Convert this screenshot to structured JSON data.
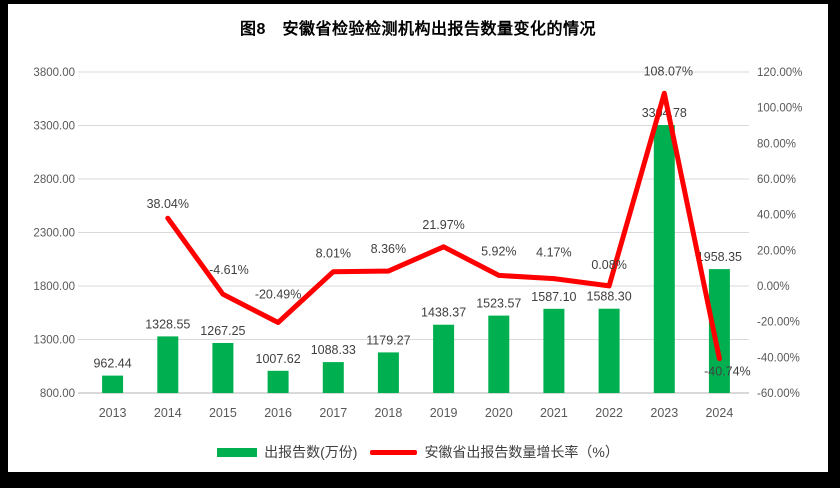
{
  "chart_data": {
    "type": "bar+line",
    "title": "图8　安徽省检验检测机构出报告数量变化的情况",
    "categories": [
      "2013",
      "2014",
      "2015",
      "2016",
      "2017",
      "2018",
      "2019",
      "2020",
      "2021",
      "2022",
      "2023",
      "2024"
    ],
    "series": [
      {
        "name": "出报告数(万份)",
        "type": "bar",
        "axis": "left",
        "color": "#00B050",
        "values": [
          962.44,
          1328.55,
          1267.25,
          1007.62,
          1088.33,
          1179.27,
          1438.37,
          1523.57,
          1587.1,
          1588.3,
          3304.78,
          1958.35
        ]
      },
      {
        "name": "安徽省出报告数量增长率（%）",
        "type": "line",
        "axis": "right",
        "color": "#FF0000",
        "values": [
          null,
          38.04,
          -4.61,
          -20.49,
          8.01,
          8.36,
          21.97,
          5.92,
          4.17,
          0.08,
          108.07,
          -40.74
        ]
      }
    ],
    "left_axis": {
      "min": 800,
      "max": 3800,
      "step": 500,
      "tick_labels": [
        "800.00",
        "1300.00",
        "1800.00",
        "2300.00",
        "2800.00",
        "3300.00",
        "3800.00"
      ]
    },
    "right_axis": {
      "min": -60,
      "max": 120,
      "step": 20,
      "tick_labels": [
        "-60.00%",
        "-40.00%",
        "-20.00%",
        "0.00%",
        "20.00%",
        "40.00%",
        "60.00%",
        "80.00%",
        "100.00%",
        "120.00%"
      ]
    },
    "grid": true,
    "legend_position": "bottom",
    "colors": {
      "grid_line": "#d9d9d9",
      "axis_text": "#595959",
      "data_label_text": "#404040",
      "background": "#ffffff",
      "frame": "#000000"
    }
  }
}
